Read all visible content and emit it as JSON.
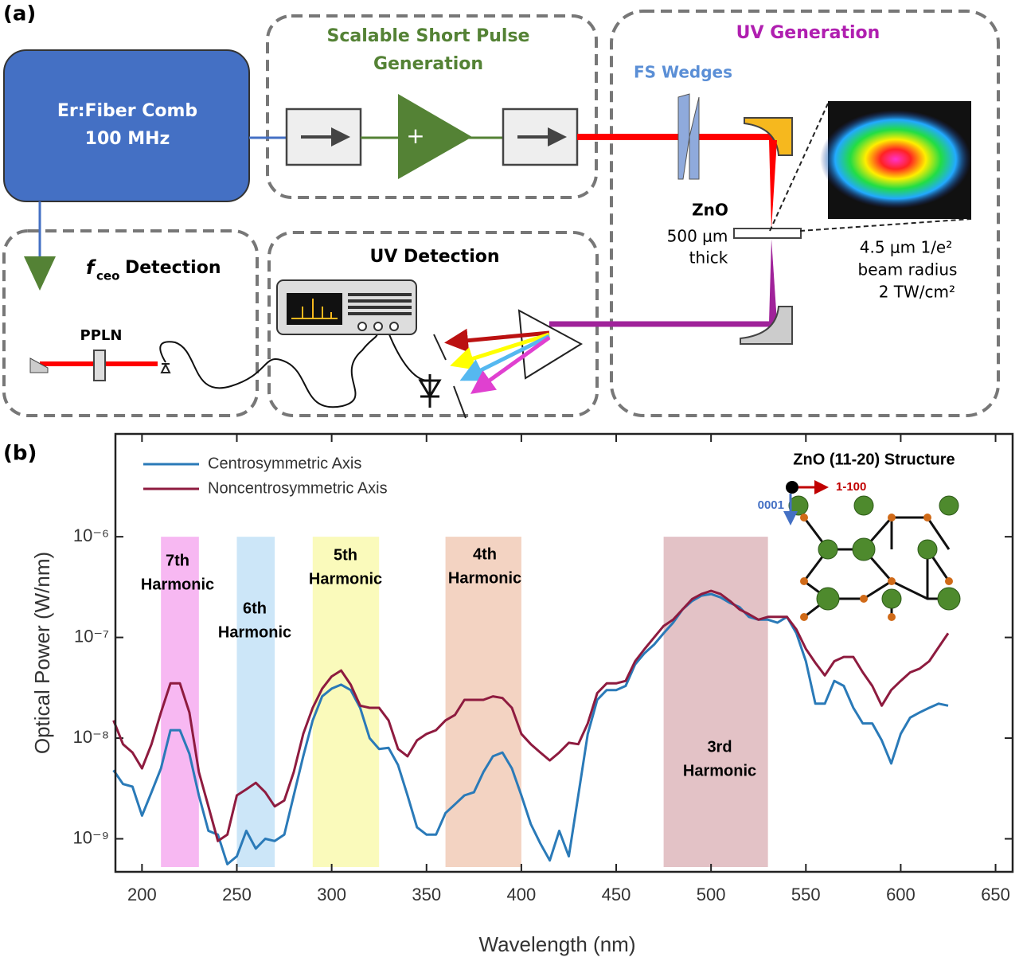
{
  "diagram": {
    "panel_label": "(a)",
    "laser": {
      "line1": "Er:Fiber Comb",
      "line2": "100 MHz"
    },
    "pulse_box": {
      "title1": "Scalable Short Pulse",
      "title2": "Generation",
      "amplifier": "+"
    },
    "uv_generation": {
      "title": "UV Generation",
      "wedges": "FS Wedges",
      "crystal": "ZnO",
      "thickness1": "500 μm",
      "thickness2": "thick",
      "beam1": "4.5 μm 1/e²",
      "beam2": "beam radius",
      "beam3": "2 TW/cm²"
    },
    "fceo": {
      "f": "f",
      "sub": "ceo",
      "rest": "Detection",
      "crystal": "PPLN"
    },
    "uv_detection": {
      "title": "UV Detection"
    }
  },
  "chart_data": {
    "type": "line",
    "panel_label": "(b)",
    "x_label": "Wavelength (nm)",
    "y_label": "Optical Power (W/nm)",
    "log_y": true,
    "xlim": [
      186,
      659
    ],
    "ylim": [
      4.7e-10,
      1.05e-05
    ],
    "xticks": [
      200,
      250,
      300,
      350,
      400,
      450,
      500,
      550,
      600,
      650
    ],
    "yticks": [
      {
        "value": 1e-06,
        "label": "10⁻⁶"
      },
      {
        "value": 1e-07,
        "label": "10⁻⁷"
      },
      {
        "value": 1e-08,
        "label": "10⁻⁸"
      },
      {
        "value": 1e-09,
        "label": "10⁻⁹"
      }
    ],
    "legend": "top-left",
    "x": [
      185,
      190,
      195,
      200,
      205,
      210,
      215,
      220,
      225,
      230,
      235,
      240,
      245,
      250,
      255,
      260,
      265,
      270,
      275,
      280,
      285,
      290,
      295,
      300,
      305,
      310,
      315,
      320,
      325,
      330,
      335,
      340,
      345,
      350,
      355,
      360,
      365,
      370,
      375,
      380,
      385,
      390,
      395,
      400,
      405,
      410,
      415,
      420,
      425,
      430,
      435,
      440,
      445,
      450,
      455,
      460,
      465,
      470,
      475,
      480,
      485,
      490,
      495,
      500,
      505,
      510,
      515,
      520,
      525,
      530,
      535,
      540,
      545,
      550,
      555,
      560,
      565,
      570,
      575,
      580,
      585,
      590,
      595,
      600,
      605,
      610,
      615,
      620,
      625
    ],
    "series": [
      {
        "name": "Centrosymmetric Axis",
        "color": "#2a7ab8",
        "values": [
          4.8e-09,
          3.5e-09,
          3.3e-09,
          1.7e-09,
          2.9e-09,
          5e-09,
          1.2e-08,
          1.2e-08,
          7e-09,
          2.7e-09,
          1.2e-09,
          1.1e-09,
          5.6e-10,
          6.7e-10,
          1.2e-09,
          8e-10,
          1e-09,
          9.5e-10,
          1.1e-09,
          2.7e-09,
          6.6e-09,
          1.5e-08,
          2.6e-08,
          3.1e-08,
          3.4e-08,
          3e-08,
          2e-08,
          1e-08,
          7.8e-09,
          8e-09,
          5.4e-09,
          2.7e-09,
          1.3e-09,
          1.1e-09,
          1.1e-09,
          1.8e-09,
          2.2e-09,
          2.7e-09,
          2.9e-09,
          4.6e-09,
          6.6e-09,
          7.2e-09,
          5e-09,
          2.7e-09,
          1.4e-09,
          9e-10,
          6.1e-10,
          1.2e-09,
          6.7e-10,
          2.7e-09,
          1.1e-08,
          2.4e-08,
          3e-08,
          3e-08,
          3.3e-08,
          5.4e-08,
          7e-08,
          8.5e-08,
          1.1e-07,
          1.4e-07,
          1.9e-07,
          2.3e-07,
          2.6e-07,
          2.7e-07,
          2.5e-07,
          2.2e-07,
          2e-07,
          1.6e-07,
          1.5e-07,
          1.5e-07,
          1.4e-07,
          1.6e-07,
          1.1e-07,
          5.8e-08,
          2.2e-08,
          2.2e-08,
          3.7e-08,
          3.3e-08,
          2e-08,
          1.4e-08,
          1.4e-08,
          9.5e-09,
          5.6e-09,
          1.1e-08,
          1.6e-08,
          1.8e-08,
          2e-08,
          2.2e-08,
          2.1e-08
        ]
      },
      {
        "name": "Noncentrosymmetric Axis",
        "color": "#8e1b3f",
        "values": [
          1.5e-08,
          8.7e-09,
          7.2e-09,
          5e-09,
          8.7e-09,
          1.8e-08,
          3.5e-08,
          3.5e-08,
          1.8e-08,
          4.6e-09,
          2.1e-09,
          9.5e-10,
          1.1e-09,
          2.7e-09,
          3.1e-09,
          3.6e-09,
          2.9e-09,
          2.1e-09,
          2.4e-09,
          4.6e-09,
          1.1e-08,
          2e-08,
          3.1e-08,
          4.1e-08,
          4.7e-08,
          3.4e-08,
          2.1e-08,
          2e-08,
          2e-08,
          1.5e-08,
          7.8e-09,
          6.6e-09,
          9.5e-09,
          1.1e-08,
          1.2e-08,
          1.5e-08,
          1.7e-08,
          2.4e-08,
          2.4e-08,
          2.4e-08,
          2.6e-08,
          2.5e-08,
          2e-08,
          1.1e-08,
          8.7e-09,
          7.2e-09,
          6e-09,
          7.2e-09,
          9e-09,
          8.7e-09,
          1.4e-08,
          2.8e-08,
          3.5e-08,
          3.5e-08,
          3.7e-08,
          5.8e-08,
          7.7e-08,
          1e-07,
          1.3e-07,
          1.5e-07,
          1.9e-07,
          2.4e-07,
          2.7e-07,
          2.9e-07,
          2.7e-07,
          2.3e-07,
          1.9e-07,
          1.7e-07,
          1.5e-07,
          1.6e-07,
          1.6e-07,
          1.6e-07,
          1.2e-07,
          7.7e-08,
          5.6e-08,
          4.2e-08,
          5.8e-08,
          6.4e-08,
          6.4e-08,
          4.5e-08,
          3.3e-08,
          2.1e-08,
          3e-08,
          3.7e-08,
          4.5e-08,
          4.9e-08,
          5.8e-08,
          8e-08,
          1.1e-07
        ]
      }
    ],
    "bands": [
      {
        "label": [
          "7th",
          "Harmonic"
        ],
        "range": [
          210,
          230
        ],
        "color": "#f7b8f2"
      },
      {
        "label": [
          "6th",
          "Harmonic"
        ],
        "range": [
          250,
          270
        ],
        "color": "#cce6f8"
      },
      {
        "label": [
          "5th",
          "Harmonic"
        ],
        "range": [
          290,
          325
        ],
        "color": "#fafabb"
      },
      {
        "label": [
          "4th",
          "Harmonic"
        ],
        "range": [
          360,
          400
        ],
        "color": "#f3d3c2"
      },
      {
        "label": [
          "3rd",
          "Harmonic"
        ],
        "range": [
          475,
          530
        ],
        "color": "#e3c2c6"
      }
    ],
    "inset": {
      "title": "ZnO (11-20) Structure",
      "axis1": "1-100",
      "axis2": "0001"
    }
  }
}
